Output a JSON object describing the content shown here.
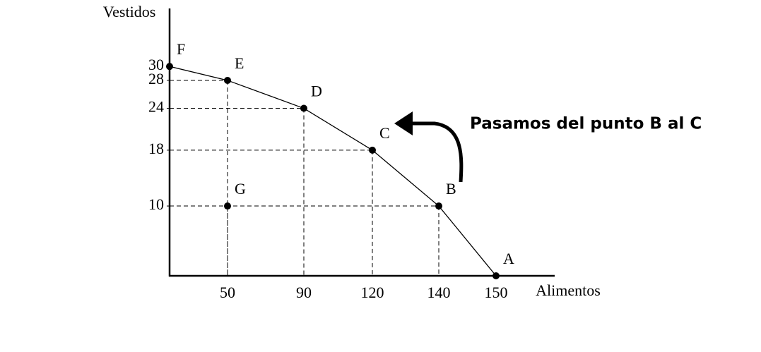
{
  "chart_data": {
    "type": "line",
    "x_label": "Alimentos",
    "y_label": "Vestidos",
    "annotation": "Pasamos del punto B al C",
    "categories": [
      null,
      "50",
      "90",
      "120",
      "140",
      "150"
    ],
    "ylim": [
      0,
      38
    ],
    "yticks": [
      10,
      18,
      24,
      28,
      30
    ],
    "color": "#000000",
    "series": [
      {
        "values": [
          30,
          28,
          24,
          18,
          10,
          0
        ],
        "point_labels": [
          "F",
          "E",
          "D",
          "C",
          "B",
          "A"
        ],
        "line": true
      },
      {
        "values": [
          null,
          10,
          null,
          null,
          null,
          null
        ],
        "point_labels": [
          null,
          "G",
          null,
          null,
          null,
          null
        ],
        "line": false
      }
    ]
  }
}
